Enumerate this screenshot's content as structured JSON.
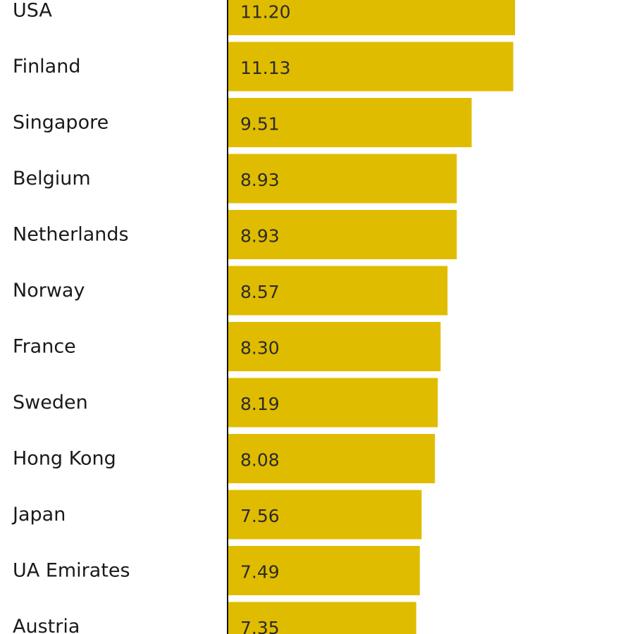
{
  "chart_data": {
    "type": "bar",
    "orientation": "horizontal",
    "categories": [
      "USA",
      "Finland",
      "Singapore",
      "Belgium",
      "Netherlands",
      "Norway",
      "France",
      "Sweden",
      "Hong Kong",
      "Japan",
      "UA Emirates",
      "Austria"
    ],
    "values": [
      11.2,
      11.13,
      9.51,
      8.93,
      8.93,
      8.57,
      8.3,
      8.19,
      8.08,
      7.56,
      7.49,
      7.35
    ],
    "value_labels": [
      "11.20",
      "11.13",
      "9.51",
      "8.93",
      "8.93",
      "8.57",
      "8.30",
      "8.19",
      "8.08",
      "7.56",
      "7.49",
      "7.35"
    ],
    "bar_color": "#E0BC00",
    "axis_color": "#111111",
    "text_color": "#1a1a1a",
    "xlim": [
      0,
      11.2
    ],
    "grid": false,
    "legend": "none"
  }
}
